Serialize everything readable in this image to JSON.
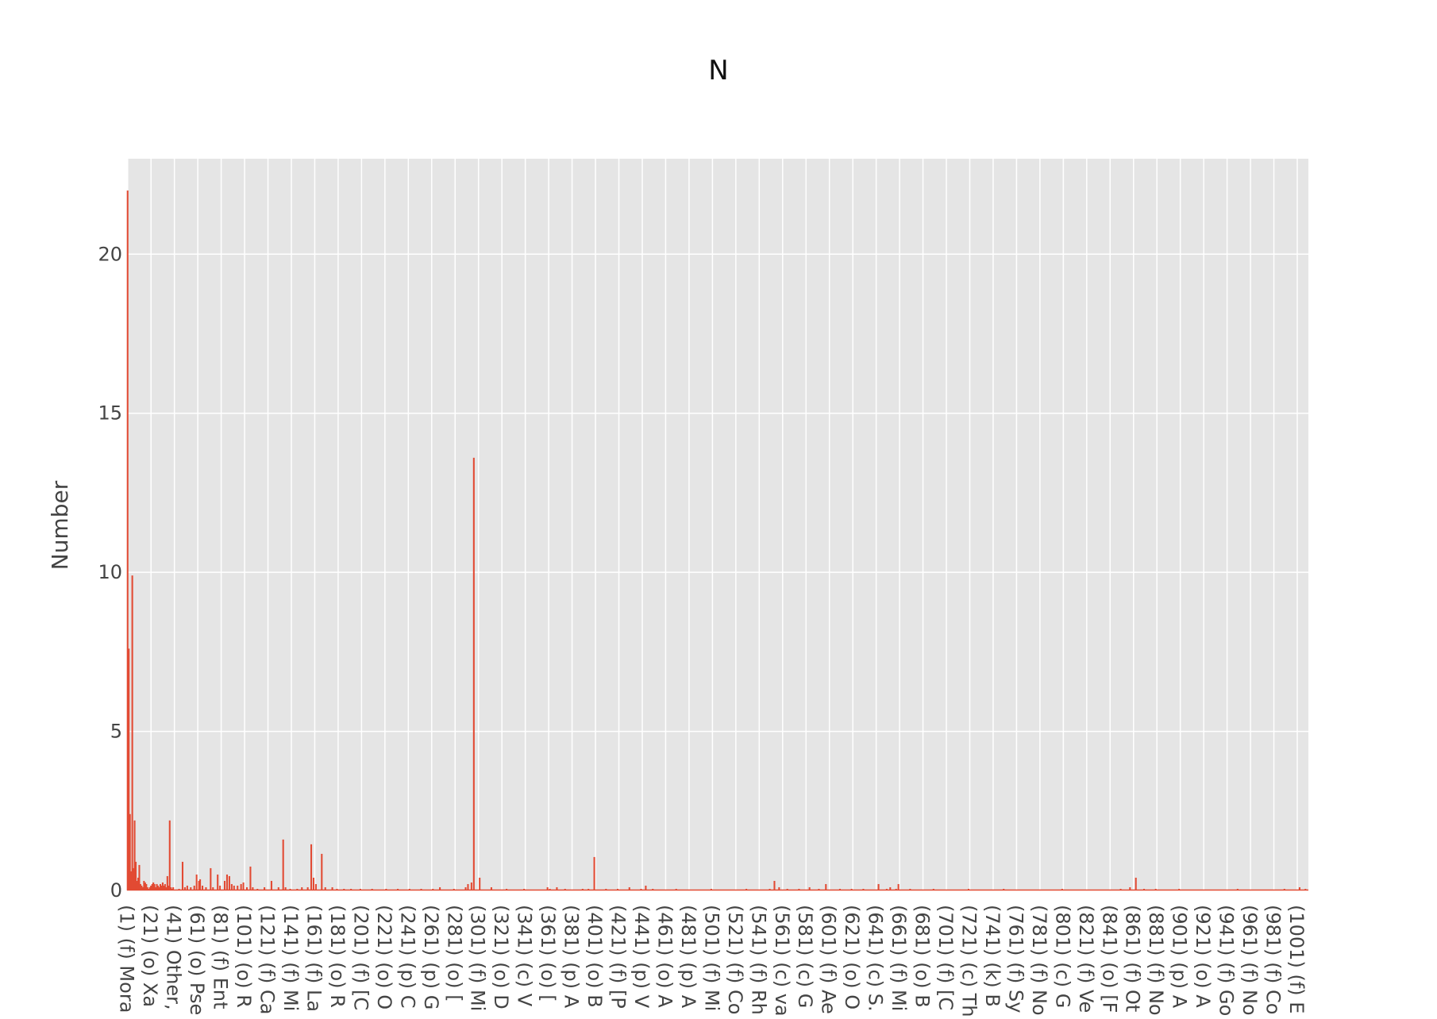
{
  "chart_data": {
    "type": "bar",
    "title": "N",
    "xlabel": "",
    "ylabel": "Number",
    "ylim": [
      0,
      23
    ],
    "yticks": [
      0,
      5,
      10,
      15,
      20
    ],
    "grid": true,
    "colors": {
      "bar": "#E24A33",
      "plot_bg": "#E5E5E5",
      "grid": "#FFFFFF"
    },
    "category_count": 1010,
    "x_tick_labels": [
      "(1) (f) Mora",
      "(21) (o) Xa",
      "(41) Other,",
      "(61) (o) Pse",
      "(81) (f) Ent",
      "(101) (o) R",
      "(121) (f) Ca",
      "(141) (f) Mi",
      "(161) (f) La",
      "(181) (o) R",
      "(201) (f) [C",
      "(221) (o) O",
      "(241) (p) C",
      "(261) (p) G",
      "(281) (o) [",
      "(301) (f) Mi",
      "(321) (o) D",
      "(341) (c) V",
      "(361) (o) [",
      "(381) (p) A",
      "(401) (o) B",
      "(421) (f) [P",
      "(441) (p) V",
      "(461) (o) A",
      "(481) (p) A",
      "(501) (f) Mi",
      "(521) (f) Co",
      "(541) (f) Rh",
      "(561) (c) va",
      "(581) (c) G",
      "(601) (f) Ae",
      "(621) (o) O",
      "(641) (c) S.",
      "(661) (f) Mi",
      "(681) (o) B",
      "(701) (f) [C",
      "(721) (c) Th",
      "(741) (k) B",
      "(761) (f) Sy",
      "(781) (f) No",
      "(801) (c) G",
      "(821) (f) Ve",
      "(841) (o) [F",
      "(861) (f) Ot",
      "(881) (f) No",
      "(901) (p) A",
      "(921) (o) A",
      "(941) (f) Go",
      "(961) (f) No",
      "(981) (f) Co",
      "(1001) (f) E"
    ],
    "nonzero_values": [
      [
        1,
        22.0
      ],
      [
        2,
        7.6
      ],
      [
        3,
        2.4
      ],
      [
        4,
        0.6
      ],
      [
        5,
        9.9
      ],
      [
        6,
        0.7
      ],
      [
        7,
        2.2
      ],
      [
        8,
        0.9
      ],
      [
        9,
        0.3
      ],
      [
        10,
        0.4
      ],
      [
        11,
        0.8
      ],
      [
        12,
        0.2
      ],
      [
        13,
        0.15
      ],
      [
        14,
        0.1
      ],
      [
        15,
        0.3
      ],
      [
        16,
        0.25
      ],
      [
        17,
        0.2
      ],
      [
        18,
        0.1
      ],
      [
        19,
        0.05
      ],
      [
        20,
        0.1
      ],
      [
        21,
        0.15
      ],
      [
        22,
        0.2
      ],
      [
        23,
        0.25
      ],
      [
        24,
        0.2
      ],
      [
        25,
        0.1
      ],
      [
        26,
        0.2
      ],
      [
        27,
        0.15
      ],
      [
        28,
        0.1
      ],
      [
        29,
        0.2
      ],
      [
        30,
        0.15
      ],
      [
        31,
        0.25
      ],
      [
        32,
        0.15
      ],
      [
        33,
        0.2
      ],
      [
        34,
        0.1
      ],
      [
        35,
        0.45
      ],
      [
        36,
        0.15
      ],
      [
        37,
        2.2
      ],
      [
        38,
        0.1
      ],
      [
        39,
        0.05
      ],
      [
        40,
        0.1
      ],
      [
        45,
        0.05
      ],
      [
        48,
        0.9
      ],
      [
        50,
        0.1
      ],
      [
        52,
        0.15
      ],
      [
        55,
        0.1
      ],
      [
        58,
        0.15
      ],
      [
        60,
        0.5
      ],
      [
        62,
        0.3
      ],
      [
        63,
        0.35
      ],
      [
        65,
        0.15
      ],
      [
        68,
        0.1
      ],
      [
        72,
        0.7
      ],
      [
        74,
        0.1
      ],
      [
        78,
        0.5
      ],
      [
        80,
        0.15
      ],
      [
        84,
        0.3
      ],
      [
        86,
        0.5
      ],
      [
        88,
        0.45
      ],
      [
        90,
        0.2
      ],
      [
        92,
        0.15
      ],
      [
        95,
        0.15
      ],
      [
        98,
        0.2
      ],
      [
        100,
        0.25
      ],
      [
        103,
        0.1
      ],
      [
        106,
        0.75
      ],
      [
        108,
        0.1
      ],
      [
        112,
        0.05
      ],
      [
        118,
        0.1
      ],
      [
        124,
        0.3
      ],
      [
        130,
        0.1
      ],
      [
        134,
        1.6
      ],
      [
        136,
        0.1
      ],
      [
        140,
        0.05
      ],
      [
        146,
        0.05
      ],
      [
        150,
        0.1
      ],
      [
        155,
        0.1
      ],
      [
        158,
        1.45
      ],
      [
        160,
        0.4
      ],
      [
        162,
        0.2
      ],
      [
        167,
        1.15
      ],
      [
        170,
        0.1
      ],
      [
        176,
        0.1
      ],
      [
        180,
        0.05
      ],
      [
        186,
        0.05
      ],
      [
        192,
        0.05
      ],
      [
        200,
        0.05
      ],
      [
        210,
        0.05
      ],
      [
        222,
        0.05
      ],
      [
        232,
        0.05
      ],
      [
        242,
        0.05
      ],
      [
        252,
        0.05
      ],
      [
        262,
        0.05
      ],
      [
        268,
        0.1
      ],
      [
        280,
        0.05
      ],
      [
        290,
        0.1
      ],
      [
        292,
        0.2
      ],
      [
        295,
        0.25
      ],
      [
        297,
        13.6
      ],
      [
        302,
        0.4
      ],
      [
        312,
        0.1
      ],
      [
        325,
        0.05
      ],
      [
        340,
        0.05
      ],
      [
        360,
        0.1
      ],
      [
        362,
        0.05
      ],
      [
        368,
        0.1
      ],
      [
        375,
        0.05
      ],
      [
        390,
        0.05
      ],
      [
        395,
        0.05
      ],
      [
        400,
        1.05
      ],
      [
        410,
        0.05
      ],
      [
        420,
        0.05
      ],
      [
        430,
        0.1
      ],
      [
        440,
        0.05
      ],
      [
        444,
        0.15
      ],
      [
        450,
        0.05
      ],
      [
        470,
        0.05
      ],
      [
        500,
        0.05
      ],
      [
        530,
        0.05
      ],
      [
        550,
        0.05
      ],
      [
        554,
        0.3
      ],
      [
        558,
        0.1
      ],
      [
        565,
        0.05
      ],
      [
        575,
        0.05
      ],
      [
        584,
        0.1
      ],
      [
        592,
        0.05
      ],
      [
        598,
        0.2
      ],
      [
        610,
        0.05
      ],
      [
        620,
        0.05
      ],
      [
        630,
        0.05
      ],
      [
        643,
        0.2
      ],
      [
        650,
        0.05
      ],
      [
        653,
        0.1
      ],
      [
        658,
        0.05
      ],
      [
        660,
        0.2
      ],
      [
        670,
        0.05
      ],
      [
        690,
        0.05
      ],
      [
        720,
        0.05
      ],
      [
        750,
        0.05
      ],
      [
        800,
        0.05
      ],
      [
        850,
        0.05
      ],
      [
        858,
        0.1
      ],
      [
        863,
        0.4
      ],
      [
        870,
        0.05
      ],
      [
        880,
        0.05
      ],
      [
        900,
        0.05
      ],
      [
        950,
        0.05
      ],
      [
        990,
        0.05
      ],
      [
        1003,
        0.1
      ],
      [
        1008,
        0.05
      ]
    ]
  }
}
